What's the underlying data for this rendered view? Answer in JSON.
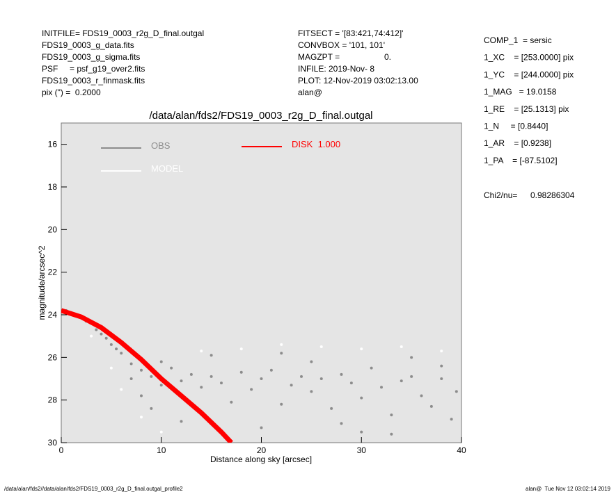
{
  "header": {
    "left": [
      "INITFILE= FDS19_0003_r2g_D_final.outgal",
      "FDS19_0003_g_data.fits",
      "FDS19_0003_g_sigma.fits",
      "PSF     = psf_g19_over2.fits",
      "FDS19_0003_r_finmask.fits",
      "pix (\") =  0.2000"
    ],
    "middle": [
      "FITSECT = '[83:421,74:412]'",
      "CONVBOX = '101, 101'",
      "MAGZPT =",
      "INFILE: 2019-Nov- 8",
      "PLOT: 12-Nov-2019 03:02:13.00",
      "alan@"
    ],
    "magzpt_value": "0.",
    "right": [
      "COMP_1  = sersic",
      "1_XC    = [253.0000] pix",
      "1_YC    = [244.0000] pix",
      "1_MAG   = 19.0158",
      "1_RE    = [25.1313] pix",
      "1_N     = [0.8440]",
      "1_AR    = [0.9238]",
      "1_PA    = [-87.5102]"
    ],
    "chi2_label": "Chi2/nu=",
    "chi2_value": "0.98286304"
  },
  "footer": {
    "left": "/data/alan/fds2//data/alan/fds2/FDS19_0003_r2g_D_final.outgal_profile2",
    "right": "alan@  Tue Nov 12 03:02:14 2019"
  },
  "chart_data": {
    "type": "scatter",
    "title": "/data/alan/fds2/FDS19_0003_r2g_D_final.outgal",
    "x_label": "Distance along sky [arcsec]",
    "y_label": "magnitude/arcsec^2",
    "xlim": [
      0,
      40
    ],
    "xticks": [
      0,
      10,
      20,
      30,
      40
    ],
    "ylim": [
      15,
      30
    ],
    "y_inverted": true,
    "yticks": [
      16,
      18,
      20,
      22,
      24,
      26,
      28,
      30
    ],
    "background": "#e5e5e5",
    "series": [
      {
        "name": "OBS",
        "color": "#8c8c8c",
        "mode": "points",
        "x": [
          0.5,
          1,
          1.5,
          2,
          2.5,
          3,
          3.5,
          4,
          4.5,
          5,
          5.5,
          6,
          7,
          7,
          8,
          8,
          9,
          9,
          10,
          10,
          11,
          12,
          13,
          14,
          15,
          16,
          17,
          18,
          19,
          20,
          21,
          22,
          23,
          24,
          25,
          26,
          27,
          28,
          29,
          30,
          31,
          32,
          33,
          34,
          35,
          36,
          37,
          38,
          39,
          39.5,
          12,
          15,
          20,
          25,
          30,
          35,
          22,
          28,
          33,
          38
        ],
        "values": [
          23.8,
          23.9,
          24.0,
          24.1,
          24.3,
          24.4,
          24.7,
          24.9,
          25.1,
          25.4,
          25.6,
          25.8,
          26.3,
          27.0,
          26.6,
          27.8,
          26.9,
          28.4,
          27.3,
          26.2,
          26.5,
          27.1,
          26.8,
          27.4,
          26.9,
          27.2,
          28.1,
          26.7,
          27.5,
          27.0,
          26.6,
          28.2,
          27.3,
          26.9,
          27.6,
          27.0,
          28.4,
          26.8,
          27.2,
          27.9,
          26.5,
          27.4,
          28.7,
          27.1,
          26.9,
          27.8,
          28.3,
          27.0,
          28.9,
          27.6,
          29.0,
          25.9,
          29.3,
          26.2,
          29.5,
          26.0,
          25.8,
          29.1,
          29.6,
          26.4
        ]
      },
      {
        "name": "MODEL",
        "color": "#ffffff",
        "mode": "points",
        "x": [
          5,
          8,
          10,
          14,
          18,
          22,
          26,
          30,
          34,
          38,
          3,
          6
        ],
        "values": [
          26.5,
          28.8,
          29.5,
          25.7,
          25.6,
          25.4,
          25.5,
          25.6,
          25.5,
          25.7,
          25.0,
          27.5
        ]
      },
      {
        "name": "DISK  1.000",
        "color": "#ff0000",
        "mode": "line",
        "x": [
          0,
          2,
          4,
          6,
          8,
          10,
          12,
          14,
          16,
          17
        ],
        "values": [
          23.8,
          24.1,
          24.6,
          25.3,
          26.1,
          27.0,
          27.8,
          28.6,
          29.5,
          30.0
        ]
      }
    ]
  }
}
